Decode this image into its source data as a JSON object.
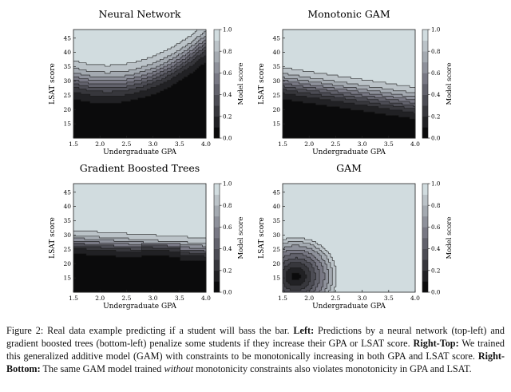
{
  "chart_data": [
    {
      "type": "heatmap",
      "title": "Neural Network",
      "xlabel": "Undergraduate GPA",
      "ylabel": "LSAT score",
      "colorbar_label": "Model score",
      "xlim": [
        1.5,
        4.0
      ],
      "ylim": [
        10,
        48
      ],
      "xticks": [
        "1.5",
        "2.0",
        "2.5",
        "3.0",
        "3.5",
        "4.0"
      ],
      "yticks": [
        "15",
        "20",
        "25",
        "30",
        "35",
        "40",
        "45"
      ],
      "colorbar_ticks": [
        "0.0",
        "0.2",
        "0.4",
        "0.6",
        "0.8",
        "1.0"
      ],
      "model": "neural_network"
    },
    {
      "type": "heatmap",
      "title": "Monotonic GAM",
      "xlabel": "Undergraduate GPA",
      "ylabel": "LSAT score",
      "colorbar_label": "Model score",
      "xlim": [
        1.5,
        4.0
      ],
      "ylim": [
        10,
        48
      ],
      "xticks": [
        "1.5",
        "2.0",
        "2.5",
        "3.0",
        "3.5",
        "4.0"
      ],
      "yticks": [
        "15",
        "20",
        "25",
        "30",
        "35",
        "40",
        "45"
      ],
      "colorbar_ticks": [
        "0.0",
        "0.2",
        "0.4",
        "0.6",
        "0.8",
        "1.0"
      ],
      "model": "monotonic_gam"
    },
    {
      "type": "heatmap",
      "title": "Gradient Boosted Trees",
      "xlabel": "Undergraduate GPA",
      "ylabel": "LSAT score",
      "colorbar_label": "Model score",
      "xlim": [
        1.5,
        4.0
      ],
      "ylim": [
        10,
        48
      ],
      "xticks": [
        "1.5",
        "2.0",
        "2.5",
        "3.0",
        "3.5",
        "4.0"
      ],
      "yticks": [
        "15",
        "20",
        "25",
        "30",
        "35",
        "40",
        "45"
      ],
      "colorbar_ticks": [
        "0.0",
        "0.2",
        "0.4",
        "0.6",
        "0.8",
        "1.0"
      ],
      "model": "gradient_boosted_trees"
    },
    {
      "type": "heatmap",
      "title": "GAM",
      "xlabel": "Undergraduate GPA",
      "ylabel": "LSAT score",
      "colorbar_label": "Model score",
      "xlim": [
        1.5,
        4.0
      ],
      "ylim": [
        10,
        48
      ],
      "xticks": [
        "1.5",
        "2.0",
        "2.5",
        "3.0",
        "3.5",
        "4.0"
      ],
      "yticks": [
        "15",
        "20",
        "25",
        "30",
        "35",
        "40",
        "45"
      ],
      "colorbar_ticks": [
        "0.0",
        "0.2",
        "0.4",
        "0.6",
        "0.8",
        "1.0"
      ],
      "model": "gam"
    }
  ],
  "colormap": {
    "low": "#000000",
    "high": "#ffffff",
    "tint": "#dce9ea"
  },
  "caption": {
    "t1": "Figure 2: Real data example predicting if a student will bass the bar. ",
    "b1": "Left:",
    "t2": " Predictions by a neural network (top-left) and gradient boosted trees (bottom-left) penalize some students if they increase their GPA or LSAT score. ",
    "b2": "Right-Top:",
    "t3": " We trained this generalized additive model (GAM) with constraints to be monotonically increasing in both GPA and LSAT score. ",
    "b3": "Right-Bottom:",
    "t4": " The same GAM model trained ",
    "i1": "without",
    "t5": " monotonicity constraints also violates monotonicity in GPA and LSAT."
  }
}
